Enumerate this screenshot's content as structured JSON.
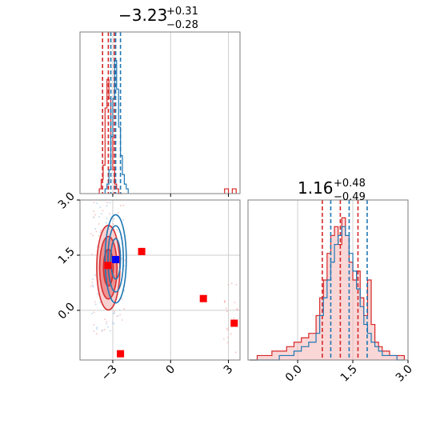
{
  "colors": {
    "red": "#d62728",
    "blue": "#1f77b4",
    "grid": "#cfcfcf",
    "spine": "#7f7f7f",
    "marker_red": "#ff0000",
    "marker_blue": "#0000ff"
  },
  "chart_data": [
    {
      "panel": "top-left",
      "type": "histogram",
      "title": {
        "main": "−3.23",
        "sup": "+0.31",
        "sub": "−0.28"
      },
      "xlim": [
        -4.7,
        3.6
      ],
      "ylim": [
        0,
        34
      ],
      "xticks": [
        -3,
        0,
        3
      ],
      "grid": true,
      "series": [
        {
          "name": "",
          "color": "red",
          "bins": [
            -3.7,
            -3.6,
            -3.5,
            -3.4,
            -3.3,
            -3.2,
            -3.1,
            -3.0,
            -2.9,
            -2.8,
            -2.7,
            -2.6
          ],
          "counts": [
            1,
            3,
            6,
            18,
            24,
            20,
            12,
            5,
            2,
            1,
            0,
            0
          ],
          "quantiles": [
            -3.53,
            -3.23,
            -2.92
          ]
        },
        {
          "name": "",
          "color": "blue",
          "bins": [
            -3.4,
            -3.3,
            -3.2,
            -3.1,
            -3.0,
            -2.9,
            -2.8,
            -2.7,
            -2.6,
            -2.5,
            -2.4,
            -2.3
          ],
          "counts": [
            1,
            2,
            5,
            12,
            20,
            28,
            22,
            14,
            8,
            4,
            2,
            1
          ],
          "quantiles": [
            -3.1,
            -2.85,
            -2.6
          ]
        }
      ],
      "outlier_bins": [
        {
          "x": 2.9,
          "count": 1,
          "color": "red"
        },
        {
          "x": 3.3,
          "count": 1,
          "color": "red"
        }
      ]
    },
    {
      "panel": "bottom-left",
      "type": "scatter",
      "xlim": [
        -4.7,
        3.6
      ],
      "ylim": [
        -1.35,
        3.0
      ],
      "xticks": [
        -3,
        0,
        3
      ],
      "yticks": [
        0.0,
        1.5,
        3.0
      ],
      "xtick_labels": [
        "−3",
        "0",
        "3"
      ],
      "ytick_labels": [
        "0.0",
        "1.5",
        "3.0"
      ],
      "grid": true,
      "red_markers": [
        {
          "x": -3.25,
          "y": 1.22
        },
        {
          "x": -1.5,
          "y": 1.6
        },
        {
          "x": 1.7,
          "y": 0.32
        },
        {
          "x": 3.3,
          "y": -0.35
        },
        {
          "x": -2.6,
          "y": -1.18
        }
      ],
      "blue_markers": [
        {
          "x": -2.85,
          "y": 1.38
        }
      ],
      "red_contours": [
        {
          "cx": -3.23,
          "cy": 1.16,
          "rx": 0.25,
          "ry": 0.5
        },
        {
          "cx": -3.23,
          "cy": 1.16,
          "rx": 0.45,
          "ry": 0.85
        },
        {
          "cx": -3.23,
          "cy": 1.16,
          "rx": 0.6,
          "ry": 1.15
        }
      ],
      "blue_contours": [
        {
          "cx": -2.85,
          "cy": 1.4,
          "rx": 0.25,
          "ry": 0.55
        },
        {
          "cx": -2.85,
          "cy": 1.4,
          "rx": 0.4,
          "ry": 0.9
        },
        {
          "cx": -2.85,
          "cy": 1.4,
          "rx": 0.55,
          "ry": 1.2
        }
      ]
    },
    {
      "panel": "bottom-right",
      "type": "histogram",
      "title": {
        "main": "1.16",
        "sup": "+0.48",
        "sub": "−0.49"
      },
      "xlim": [
        -1.35,
        3.0
      ],
      "ylim": [
        0,
        36
      ],
      "xticks": [
        0.0,
        1.5,
        3.0
      ],
      "xtick_labels": [
        "0.0",
        "1.5",
        "3.0"
      ],
      "grid": true,
      "series": [
        {
          "name": "",
          "color": "red",
          "bins": [
            -1.3,
            -1.1,
            -0.9,
            -0.7,
            -0.5,
            -0.3,
            -0.1,
            0.1,
            0.3,
            0.5,
            0.6,
            0.7,
            0.8,
            0.9,
            1.0,
            1.1,
            1.2,
            1.3,
            1.4,
            1.5,
            1.6,
            1.7,
            1.8,
            1.9,
            2.0,
            2.1,
            2.2,
            2.3,
            2.5,
            2.7
          ],
          "counts": [
            0,
            1,
            1,
            2,
            2,
            3,
            4,
            5,
            6,
            10,
            14,
            18,
            24,
            28,
            30,
            26,
            32,
            28,
            22,
            18,
            20,
            14,
            10,
            18,
            8,
            4,
            3,
            2,
            1,
            1
          ],
          "quantiles": [
            0.67,
            1.16,
            1.64
          ]
        },
        {
          "name": "",
          "color": "blue",
          "bins": [
            -1.3,
            -1.1,
            -0.9,
            -0.7,
            -0.5,
            -0.3,
            -0.1,
            0.1,
            0.3,
            0.5,
            0.6,
            0.7,
            0.8,
            0.9,
            1.0,
            1.1,
            1.2,
            1.3,
            1.4,
            1.5,
            1.6,
            1.7,
            1.8,
            1.9,
            2.0,
            2.1,
            2.2,
            2.3,
            2.5,
            2.7
          ],
          "counts": [
            0,
            0,
            0,
            0,
            1,
            1,
            2,
            3,
            4,
            6,
            10,
            14,
            18,
            22,
            26,
            28,
            30,
            28,
            24,
            20,
            16,
            12,
            8,
            6,
            4,
            3,
            2,
            1,
            1,
            0
          ],
          "quantiles": [
            0.9,
            1.4,
            1.89
          ]
        }
      ]
    }
  ]
}
